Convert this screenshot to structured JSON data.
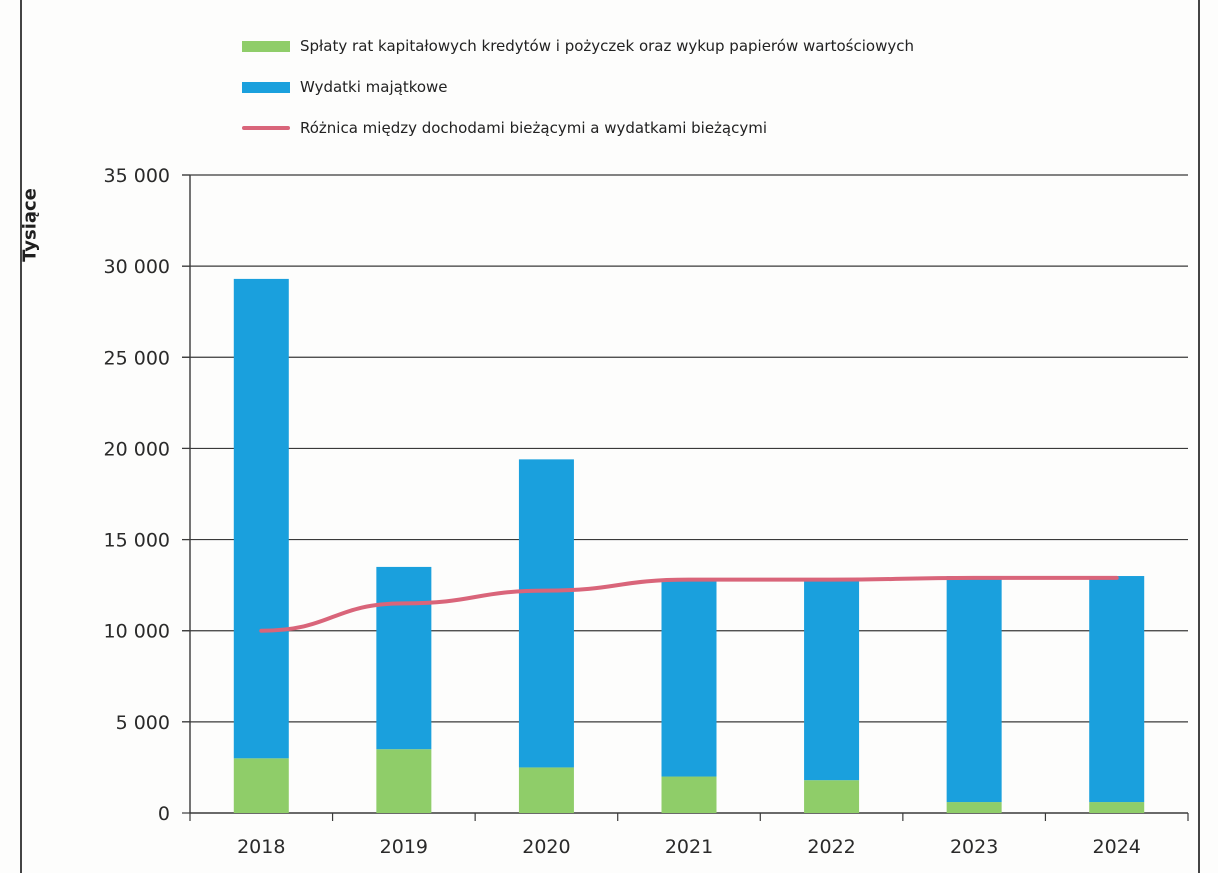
{
  "chart_data": {
    "type": "bar",
    "stacked": true,
    "categories": [
      "2018",
      "2019",
      "2020",
      "2021",
      "2022",
      "2023",
      "2024"
    ],
    "series": [
      {
        "name": "Spłaty rat kapitałowych kredytów i pożyczek oraz wykup papierów wartościowych",
        "kind": "bar",
        "color": "#8fcd69",
        "values": [
          3000,
          3500,
          2500,
          2000,
          1800,
          600,
          600
        ]
      },
      {
        "name": "Wydatki majątkowe",
        "kind": "bar",
        "color": "#1aa0dd",
        "values": [
          26300,
          10000,
          16900,
          10800,
          11000,
          12400,
          12400
        ]
      },
      {
        "name": "Różnica między dochodami bieżącymi a  wydatkami bieżącymi",
        "kind": "line",
        "color": "#d9657a",
        "values": [
          10000,
          11500,
          12200,
          12800,
          12800,
          12900,
          12900
        ]
      }
    ],
    "ylabel": "Tysiące",
    "ylim": [
      0,
      35000
    ],
    "yticks": [
      0,
      5000,
      10000,
      15000,
      20000,
      25000,
      30000,
      35000
    ],
    "ytick_labels": [
      "0",
      "5 000",
      "10 000",
      "15 000",
      "20 000",
      "25 000",
      "30 000",
      "35 000"
    ],
    "grid": "horizontal",
    "legend_position": "top"
  }
}
